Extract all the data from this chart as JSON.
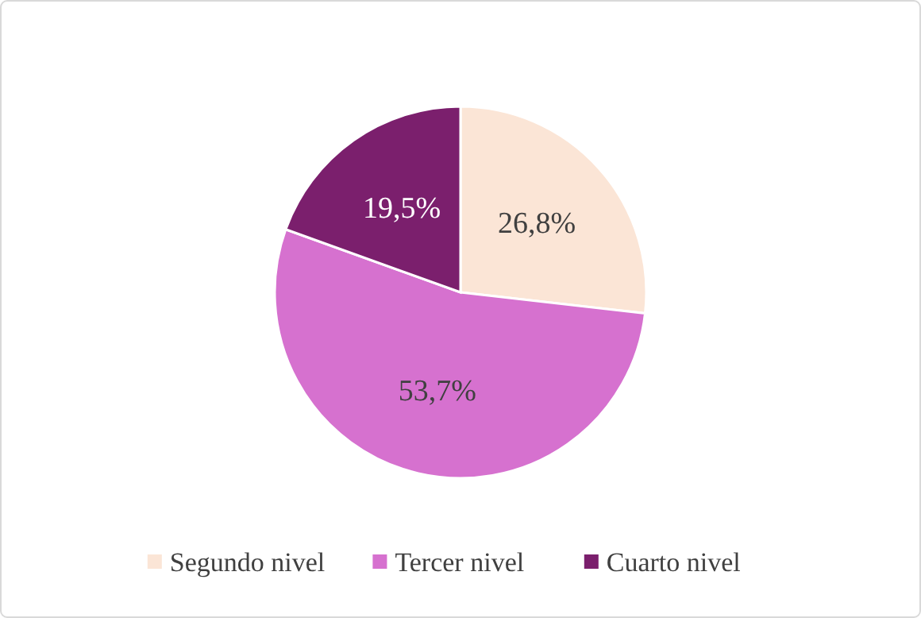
{
  "chart_data": {
    "type": "pie",
    "categories": [
      "Segundo nivel",
      "Tercer nivel",
      "Cuarto nivel"
    ],
    "values": [
      26.8,
      53.7,
      19.5
    ],
    "value_labels": [
      "26,8%",
      "53,7%",
      "19,5%"
    ],
    "colors": [
      "#fbe5d6",
      "#d671cf",
      "#7b1f6d"
    ],
    "legend": "bottom"
  }
}
